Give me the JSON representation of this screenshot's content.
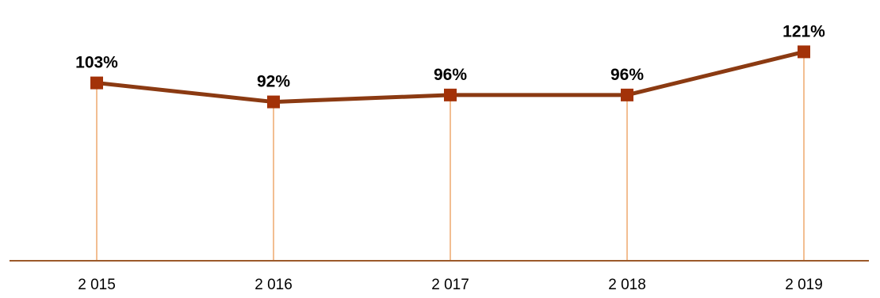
{
  "chart_data": {
    "type": "line",
    "categories": [
      "2 015",
      "2 016",
      "2 017",
      "2 018",
      "2 019"
    ],
    "values": [
      103,
      92,
      96,
      96,
      121
    ],
    "data_labels": [
      "103%",
      "92%",
      "96%",
      "96%",
      "121%"
    ],
    "ylim": [
      0,
      140
    ],
    "grid": false,
    "drop_lines": true,
    "marker": "square",
    "colors": {
      "line": "#8B3A12",
      "marker": "#A33208",
      "drop_line": "#F2BE92",
      "axis": "#9C5A2A"
    }
  }
}
